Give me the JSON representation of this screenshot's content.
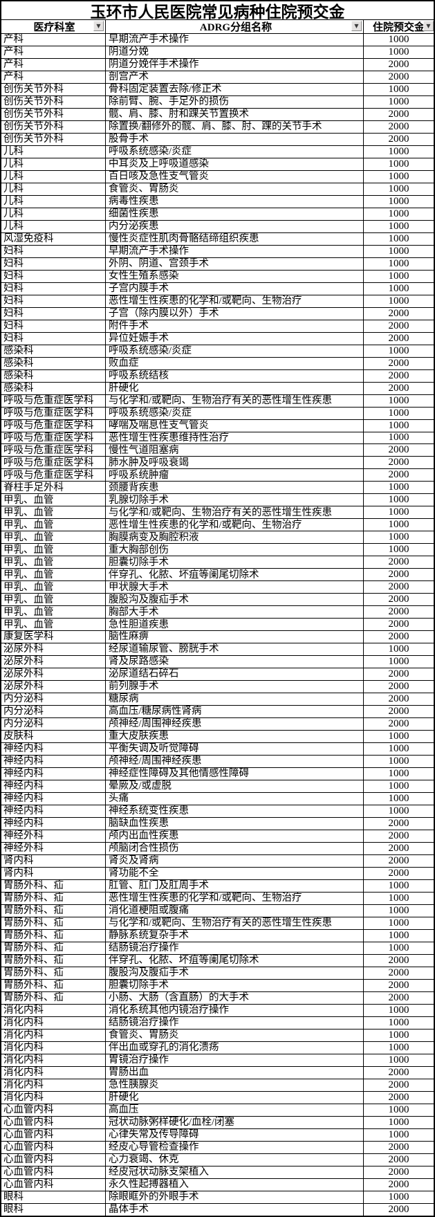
{
  "title": "玉环市人民医院常见病种住院预交金",
  "header": {
    "columns": [
      "医疗科室",
      "ADRG分组名称",
      "住院预交金"
    ],
    "filter_icon": "▼"
  },
  "colors": {
    "background": "#ffffff",
    "text": "#000000",
    "grid_border": "#000000",
    "filter_button_bg": "#e4e2e1",
    "filter_arrow": "#3a3a3a"
  },
  "rows": [
    [
      "产科",
      "早期流产手术操作",
      "1000"
    ],
    [
      "产科",
      "阴道分娩",
      "1000"
    ],
    [
      "产科",
      "阴道分娩伴手术操作",
      "2000"
    ],
    [
      "产科",
      "剖宫产术",
      "2000"
    ],
    [
      "创伤关节外科",
      "骨科固定装置去除/修正术",
      "1000"
    ],
    [
      "创伤关节外科",
      "除前臂、腕、手足外的损伤",
      "1000"
    ],
    [
      "创伤关节外科",
      "髋、肩、膝、肘和踝关节置换术",
      "2000"
    ],
    [
      "创伤关节外科",
      "除置换/翻修外的髋、肩、膝、肘、踝的关节手术",
      "2000"
    ],
    [
      "创伤关节外科",
      "股骨手术",
      "2000"
    ],
    [
      "儿科",
      "呼吸系统感染/炎症",
      "1000"
    ],
    [
      "儿科",
      "中耳炎及上呼吸道感染",
      "1000"
    ],
    [
      "儿科",
      "百日咳及急性支气管炎",
      "1000"
    ],
    [
      "儿科",
      "食管炎、胃肠炎",
      "1000"
    ],
    [
      "儿科",
      "病毒性疾患",
      "1000"
    ],
    [
      "儿科",
      "细菌性疾患",
      "1000"
    ],
    [
      "儿科",
      "内分泌疾患",
      "1000"
    ],
    [
      "风湿免疫科",
      "慢性炎症性肌肉骨骼结缔组织疾患",
      "1000"
    ],
    [
      "妇科",
      "早期流产手术操作",
      "1000"
    ],
    [
      "妇科",
      "外阴、阴道、宫颈手术",
      "1000"
    ],
    [
      "妇科",
      "女性生殖系感染",
      "1000"
    ],
    [
      "妇科",
      "子宫内膜手术",
      "1000"
    ],
    [
      "妇科",
      "恶性增生性疾患的化学和/或靶向、生物治疗",
      "1000"
    ],
    [
      "妇科",
      "子宫（除内膜以外）手术",
      "2000"
    ],
    [
      "妇科",
      "附件手术",
      "2000"
    ],
    [
      "妇科",
      "异位妊娠手术",
      "2000"
    ],
    [
      "感染科",
      "呼吸系统感染/炎症",
      "1000"
    ],
    [
      "感染科",
      "败血症",
      "2000"
    ],
    [
      "感染科",
      "呼吸系统结核",
      "2000"
    ],
    [
      "感染科",
      "肝硬化",
      "2000"
    ],
    [
      "呼吸与危重症医学科",
      "与化学和/或靶向、生物治疗有关的恶性增生性疾患",
      "1000"
    ],
    [
      "呼吸与危重症医学科",
      "呼吸系统感染/炎症",
      "1000"
    ],
    [
      "呼吸与危重症医学科",
      "哮喘及喘息性支气管炎",
      "1000"
    ],
    [
      "呼吸与危重症医学科",
      "恶性增生性疾患维持性治疗",
      "1000"
    ],
    [
      "呼吸与危重症医学科",
      "慢性气道阻塞病",
      "2000"
    ],
    [
      "呼吸与危重症医学科",
      "肺水肿及呼吸衰竭",
      "2000"
    ],
    [
      "呼吸与危重症医学科",
      "呼吸系统肿瘤",
      "2000"
    ],
    [
      "脊柱手足外科",
      "颈腰背疾患",
      "1000"
    ],
    [
      "甲乳、血管",
      "乳腺切除手术",
      "1000"
    ],
    [
      "甲乳、血管",
      "与化学和/或靶向、生物治疗有关的恶性增生性疾患",
      "1000"
    ],
    [
      "甲乳、血管",
      "恶性增生性疾患的化学和/或靶向、生物治疗",
      "1000"
    ],
    [
      "甲乳、血管",
      "胸膜病变及胸腔积液",
      "1000"
    ],
    [
      "甲乳、血管",
      "重大胸部创伤",
      "1000"
    ],
    [
      "甲乳、血管",
      "胆囊切除手术",
      "2000"
    ],
    [
      "甲乳、血管",
      "伴穿孔、化脓、坏疽等阑尾切除术",
      "2000"
    ],
    [
      "甲乳、血管",
      "甲状腺大手术",
      "2000"
    ],
    [
      "甲乳、血管",
      "腹股沟及腹疝手术",
      "2000"
    ],
    [
      "甲乳、血管",
      "胸部大手术",
      "2000"
    ],
    [
      "甲乳、血管",
      "急性胆道疾患",
      "2000"
    ],
    [
      "康复医学科",
      "脑性麻痹",
      "2000"
    ],
    [
      "泌尿外科",
      "经尿道输尿管、膀胱手术",
      "1000"
    ],
    [
      "泌尿外科",
      "肾及尿路感染",
      "1000"
    ],
    [
      "泌尿外科",
      "泌尿道结石碎石",
      "2000"
    ],
    [
      "泌尿外科",
      "前列腺手术",
      "2000"
    ],
    [
      "内分泌科",
      "糖尿病",
      "2000"
    ],
    [
      "内分泌科",
      "高血压/糖尿病性肾病",
      "2000"
    ],
    [
      "内分泌科",
      "颅神经/周围神经疾患",
      "2000"
    ],
    [
      "皮肤科",
      "重大皮肤疾患",
      "1000"
    ],
    [
      "神经内科",
      "平衡失调及听觉障碍",
      "1000"
    ],
    [
      "神经内科",
      "颅神经/周围神经疾患",
      "1000"
    ],
    [
      "神经内科",
      "神经症性障碍及其他情感性障碍",
      "1000"
    ],
    [
      "神经内科",
      "晕厥及/或虚脱",
      "1000"
    ],
    [
      "神经内科",
      "头痛",
      "1000"
    ],
    [
      "神经内科",
      "神经系统变性疾患",
      "1000"
    ],
    [
      "神经内科",
      "脑缺血性疾患",
      "2000"
    ],
    [
      "神经外科",
      "颅内出血性疾患",
      "2000"
    ],
    [
      "神经外科",
      "颅脑闭合性损伤",
      "2000"
    ],
    [
      "肾内科",
      "肾炎及肾病",
      "2000"
    ],
    [
      "肾内科",
      "肾功能不全",
      "2000"
    ],
    [
      "胃肠外科、疝",
      "肛管、肛门及肛周手术",
      "1000"
    ],
    [
      "胃肠外科、疝",
      "恶性增生性疾患的化学和/或靶向、生物治疗",
      "1000"
    ],
    [
      "胃肠外科、疝",
      "消化道梗阻或腹痛",
      "1000"
    ],
    [
      "胃肠外科、疝",
      "与化学和/或靶向、生物治疗有关的恶性增生性疾患",
      "1000"
    ],
    [
      "胃肠外科、疝",
      "静脉系统复杂手术",
      "1000"
    ],
    [
      "胃肠外科、疝",
      "结肠镜治疗操作",
      "1000"
    ],
    [
      "胃肠外科、疝",
      "伴穿孔、化脓、坏疽等阑尾切除术",
      "2000"
    ],
    [
      "胃肠外科、疝",
      "腹股沟及腹疝手术",
      "2000"
    ],
    [
      "胃肠外科、疝",
      "胆囊切除手术",
      "2000"
    ],
    [
      "胃肠外科、疝",
      "小肠、大肠（含直肠）的大手术",
      "2000"
    ],
    [
      "消化内科",
      "消化系统其他内镜治疗操作",
      "1000"
    ],
    [
      "消化内科",
      "结肠镜治疗操作",
      "1000"
    ],
    [
      "消化内科",
      "食管炎、胃肠炎",
      "1000"
    ],
    [
      "消化内科",
      "伴出血或穿孔的消化溃疡",
      "1000"
    ],
    [
      "消化内科",
      "胃镜治疗操作",
      "1000"
    ],
    [
      "消化内科",
      "胃肠出血",
      "2000"
    ],
    [
      "消化内科",
      "急性胰腺炎",
      "2000"
    ],
    [
      "消化内科",
      "肝硬化",
      "2000"
    ],
    [
      "心血管内科",
      "高血压",
      "1000"
    ],
    [
      "心血管内科",
      "冠状动脉粥样硬化/血栓/闭塞",
      "1000"
    ],
    [
      "心血管内科",
      "心律失常及传导障碍",
      "1000"
    ],
    [
      "心血管内科",
      "经皮心导管检查操作",
      "2000"
    ],
    [
      "心血管内科",
      "心力衰竭、休克",
      "2000"
    ],
    [
      "心血管内科",
      "经皮冠状动脉支架植入",
      "2000"
    ],
    [
      "心血管内科",
      "永久性起搏器植入",
      "2000"
    ],
    [
      "眼科",
      "除眼眶外的外眼手术",
      "1000"
    ],
    [
      "眼科",
      "晶体手术",
      "2000"
    ]
  ]
}
